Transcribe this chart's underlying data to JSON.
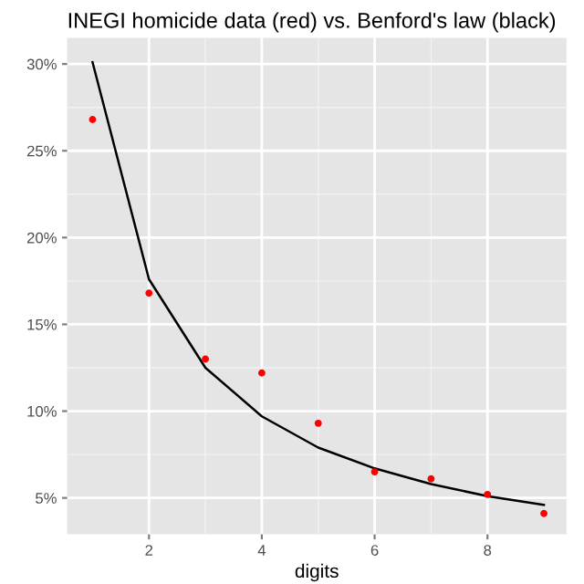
{
  "chart_data": {
    "type": "scatter",
    "title": "INEGI homicide data (red) vs. Benford's law (black)",
    "xlabel": "digits",
    "x": [
      1,
      2,
      3,
      4,
      5,
      6,
      7,
      8,
      9
    ],
    "series": [
      {
        "color": "#ff0000",
        "marker": "circle",
        "values": [
          26.8,
          16.8,
          13.0,
          12.2,
          9.3,
          6.5,
          6.1,
          5.2,
          4.1
        ]
      },
      {
        "type": "line",
        "color": "#000000",
        "values": [
          30.1,
          17.6,
          12.5,
          9.7,
          7.9,
          6.7,
          5.8,
          5.1,
          4.6
        ]
      }
    ],
    "xlim": [
      0.55,
      9.4
    ],
    "ylim": [
      2.9,
      31.5
    ],
    "xticks": [
      2,
      4,
      6,
      8
    ],
    "yticks": [
      {
        "value": 5,
        "label": "5%"
      },
      {
        "value": 10,
        "label": "10%"
      },
      {
        "value": 15,
        "label": "15%"
      },
      {
        "value": 20,
        "label": "20%"
      },
      {
        "value": 25,
        "label": "25%"
      },
      {
        "value": 30,
        "label": "30%"
      }
    ],
    "grid": true
  }
}
